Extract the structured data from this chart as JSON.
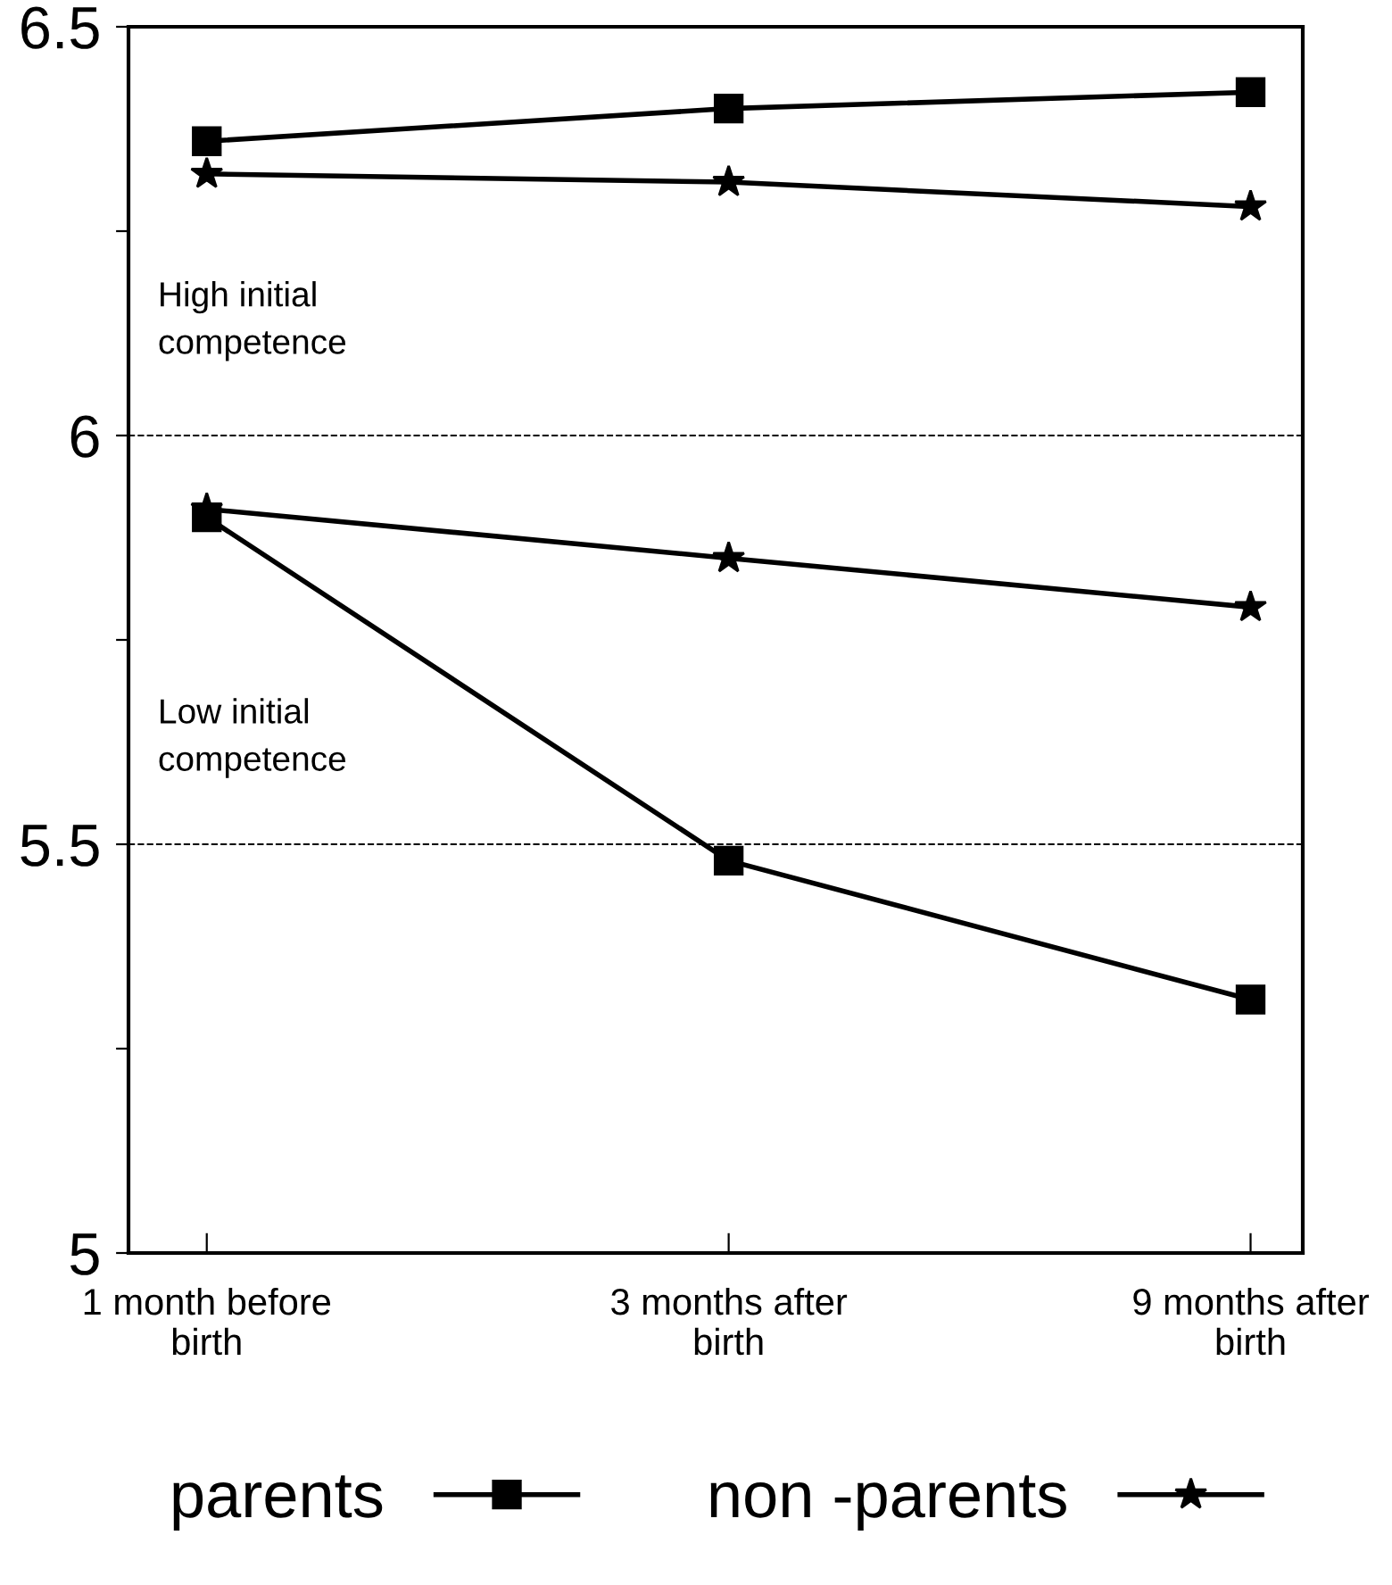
{
  "chart_data": {
    "type": "line",
    "categories": [
      "1 month before\nbirth",
      "3 months after\nbirth",
      "9 months after\nbirth"
    ],
    "series": [
      {
        "name": "parents",
        "color": "#000000",
        "marker": "square",
        "values": [
          6.36,
          6.4,
          6.42
        ]
      },
      {
        "name": "non -parents",
        "color": "#000000",
        "marker": "star",
        "values": [
          6.32,
          6.31,
          6.28
        ]
      },
      {
        "color": "#000000",
        "marker": "square",
        "values": [
          5.9,
          5.48,
          5.31
        ]
      },
      {
        "color": "#000000",
        "marker": "star",
        "values": [
          5.91,
          5.85,
          5.79
        ]
      }
    ],
    "ylim": [
      5,
      6.5
    ],
    "yticks": [
      5,
      {
        "value": 5.25,
        "label": null
      },
      5.5,
      {
        "value": 5.75,
        "label": null
      },
      6,
      {
        "value": 6.25,
        "label": null
      },
      6.5
    ],
    "ref_lines": [
      {
        "axis": "y",
        "value": 6,
        "line_style": "dashed",
        "color": "#000000"
      },
      {
        "axis": "y",
        "value": 5.5,
        "line_style": "dashed",
        "color": "#000000"
      }
    ],
    "annotations": [
      "High initial\ncompetence",
      "Low initial\ncompetence"
    ],
    "line_style": "solid",
    "legend": "bottom",
    "grid": false
  }
}
